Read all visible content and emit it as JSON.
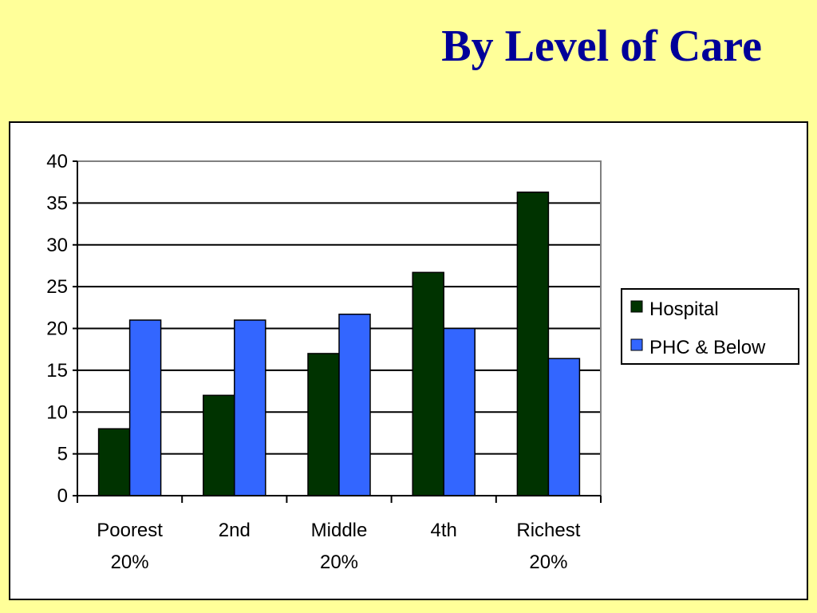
{
  "slide": {
    "title": "By Level of Care"
  },
  "colors": {
    "background": "#ffff99",
    "title": "#000099",
    "hospital": "#003300",
    "phc": "#3366ff"
  },
  "chart_data": {
    "type": "bar",
    "title": "",
    "xlabel": "",
    "ylabel": "",
    "categories": [
      [
        "Poorest",
        "20%"
      ],
      [
        "2nd"
      ],
      [
        "Middle",
        "20%"
      ],
      [
        "4th"
      ],
      [
        "Richest",
        "20%"
      ]
    ],
    "series": [
      {
        "name": "Hospital",
        "color": "#003300",
        "values": [
          8,
          12,
          17,
          26.7,
          36.3
        ]
      },
      {
        "name": "PHC & Below",
        "color": "#3366ff",
        "values": [
          21,
          21,
          21.7,
          20,
          16.4
        ]
      }
    ],
    "ylim": [
      0,
      40
    ],
    "yticks": [
      0,
      5,
      10,
      15,
      20,
      25,
      30,
      35,
      40
    ],
    "grid": true,
    "legend_position": "right"
  }
}
